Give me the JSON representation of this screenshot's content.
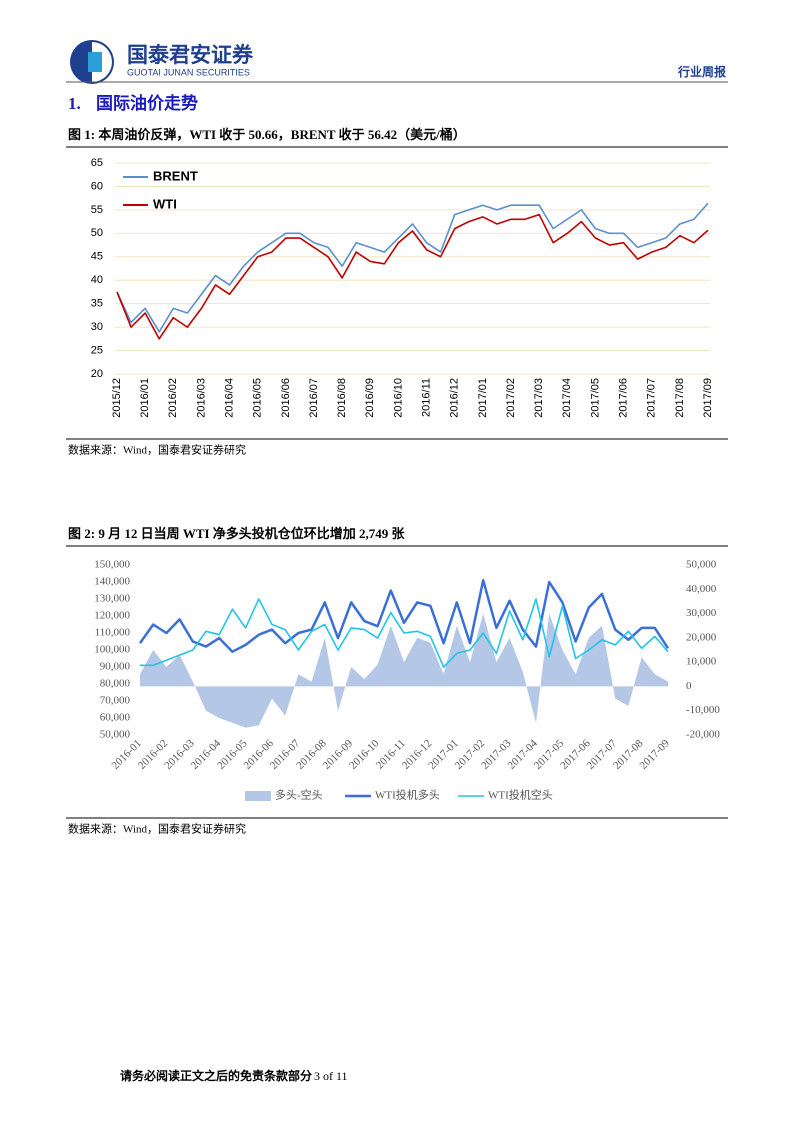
{
  "header": {
    "brand": "国泰君安证券",
    "brand_en": "GUOTAI JUNAN SECURITIES",
    "report_type": "行业周报"
  },
  "section": {
    "number": "1.",
    "title": "国际油价走势"
  },
  "chart_data": [
    {
      "type": "line",
      "title": "图 1:  本周油价反弹，WTI 收于 50.66，BRENT 收于 56.42（美元/桶）",
      "source": "数据来源：Wind，国泰君安证券研究",
      "categories": [
        "2015/12",
        null,
        "2016/01",
        null,
        "2016/02",
        null,
        "2016/03",
        null,
        "2016/04",
        null,
        "2016/05",
        null,
        "2016/06",
        null,
        "2016/07",
        null,
        "2016/08",
        null,
        "2016/09",
        null,
        "2016/10",
        null,
        "2016/11",
        null,
        "2016/12",
        null,
        "2017/01",
        null,
        "2017/02",
        null,
        "2017/03",
        null,
        "2017/04",
        null,
        "2017/05",
        null,
        "2017/06",
        null,
        "2017/07",
        null,
        "2017/08",
        null,
        "2017/09"
      ],
      "series": [
        {
          "name": "BRENT",
          "color": "#5b8fd0",
          "values": [
            37.5,
            31,
            34,
            29,
            34,
            33,
            37,
            41,
            39,
            43,
            46,
            48,
            50,
            50,
            48,
            47,
            43,
            48,
            47,
            46,
            49,
            52,
            48,
            46,
            54,
            55,
            56,
            55,
            56,
            56,
            56,
            51,
            53,
            55,
            51,
            50,
            50,
            47,
            48,
            49,
            52,
            53,
            56.42
          ]
        },
        {
          "name": "WTI",
          "color": "#c00000",
          "values": [
            37.5,
            30,
            33,
            27.5,
            32,
            30,
            34,
            39,
            37,
            41,
            45,
            46,
            49,
            49,
            47,
            45,
            40.5,
            46,
            44,
            43.5,
            48,
            50.5,
            46.5,
            45,
            51,
            52.5,
            53.5,
            52,
            53,
            53,
            54,
            48,
            50,
            52.5,
            49,
            47.5,
            48,
            44.5,
            46,
            47,
            49.5,
            48,
            50.66
          ]
        }
      ],
      "ylim": [
        20,
        65
      ],
      "yticks": [
        20,
        25,
        30,
        35,
        40,
        45,
        50,
        55,
        60,
        65
      ],
      "grid": true,
      "legend": "top-left"
    },
    {
      "type": "line",
      "title": "图 2:  9 月 12 日当周 WTI 净多头投机仓位环比增加 2,749 张",
      "source": "数据来源：Wind，国泰君安证券研究",
      "categories": [
        "2016-01",
        null,
        "2016-02",
        null,
        "2016-03",
        null,
        "2016-04",
        null,
        "2016-05",
        null,
        "2016-06",
        null,
        "2016-07",
        null,
        "2016-08",
        null,
        "2016-09",
        null,
        "2016-10",
        null,
        "2016-11",
        null,
        "2016-12",
        null,
        "2017-01",
        null,
        "2017-02",
        null,
        "2017-03",
        null,
        "2017-04",
        null,
        "2017-05",
        null,
        "2017-06",
        null,
        "2017-07",
        null,
        "2017-08",
        null,
        "2017-09"
      ],
      "series": [
        {
          "name": "多头-空头",
          "color": "#b4c7e7",
          "style": "area",
          "axis": "y2",
          "values": [
            5000,
            15000,
            8000,
            13000,
            2000,
            -10000,
            -13000,
            -15000,
            -17000,
            -16000,
            -5000,
            -12000,
            5000,
            2000,
            20000,
            -10000,
            8000,
            3000,
            9000,
            25000,
            10000,
            20000,
            18000,
            5000,
            25000,
            10000,
            30000,
            10000,
            20000,
            6000,
            -15000,
            30000,
            15000,
            5000,
            20000,
            25000,
            -5000,
            -8000,
            12000,
            5000,
            2000
          ]
        },
        {
          "name": "WTI投机多头",
          "color": "#3a6fd8",
          "values": [
            104000,
            115000,
            110000,
            118000,
            105000,
            102000,
            107000,
            99000,
            103000,
            109000,
            112000,
            104000,
            110000,
            112000,
            128000,
            107000,
            128000,
            117000,
            114000,
            135000,
            116000,
            128000,
            126000,
            104000,
            128000,
            104000,
            141000,
            113000,
            129000,
            112000,
            102000,
            140000,
            128000,
            105000,
            125000,
            133000,
            112000,
            106000,
            113000,
            113000,
            101000
          ]
        },
        {
          "name": "WTI投机空头",
          "color": "#22c4e8",
          "values": [
            91000,
            91000,
            94000,
            97000,
            100000,
            111000,
            109000,
            124000,
            113000,
            130000,
            115000,
            112000,
            100000,
            111000,
            115000,
            100000,
            113000,
            112000,
            107000,
            122000,
            110000,
            111000,
            108000,
            90000,
            98000,
            100000,
            110000,
            98000,
            123000,
            106000,
            130000,
            96000,
            126000,
            95000,
            100000,
            106000,
            103000,
            111000,
            101000,
            108000,
            99000
          ]
        }
      ],
      "ylim": [
        50000,
        150000
      ],
      "yticks": [
        {
          "value": 50000,
          "label": "50,000"
        },
        {
          "value": 60000,
          "label": "60,000"
        },
        {
          "value": 70000,
          "label": "70,000"
        },
        {
          "value": 80000,
          "label": "80,000"
        },
        {
          "value": 90000,
          "label": "90,000"
        },
        {
          "value": 100000,
          "label": "100,000"
        },
        {
          "value": 110000,
          "label": "110,000"
        },
        {
          "value": 120000,
          "label": "120,000"
        },
        {
          "value": 130000,
          "label": "130,000"
        },
        {
          "value": 140000,
          "label": "140,000"
        },
        {
          "value": 150000,
          "label": "150,000"
        }
      ],
      "y2lim": [
        -20000,
        50000
      ],
      "y2ticks": [
        {
          "value": -20000,
          "label": "-20,000"
        },
        {
          "value": -10000,
          "label": "-10,000"
        },
        0,
        {
          "value": 10000,
          "label": "10,000"
        },
        {
          "value": 20000,
          "label": "20,000"
        },
        {
          "value": 30000,
          "label": "30,000"
        },
        {
          "value": 40000,
          "label": "40,000"
        },
        {
          "value": 50000,
          "label": "50,000"
        }
      ],
      "grid": false,
      "legend": "bottom"
    }
  ],
  "footer": {
    "disclaimer": "请务必阅读正文之后的免责条款部分",
    "page": "3 of 11"
  }
}
